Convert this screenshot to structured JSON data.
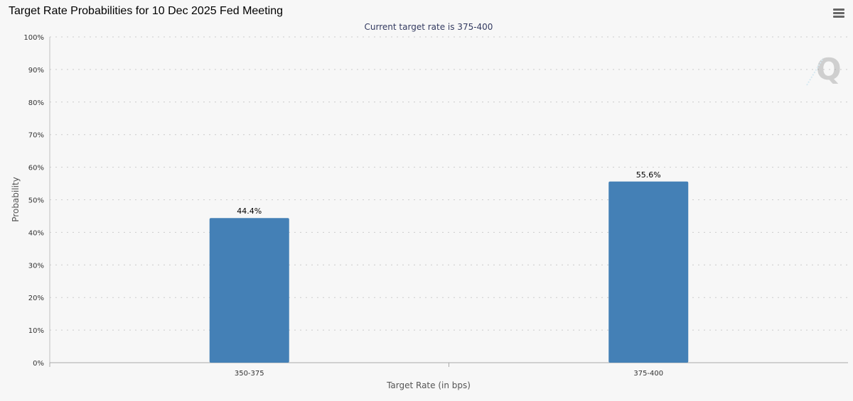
{
  "chart_data": {
    "type": "bar",
    "title": "Target Rate Probabilities for 10 Dec 2025 Fed Meeting",
    "subtitle": "Current target rate is 375-400",
    "xlabel": "Target Rate (in bps)",
    "ylabel": "Probability",
    "categories": [
      "350-375",
      "375-400"
    ],
    "values": [
      44.4,
      55.6
    ],
    "data_labels": [
      "44.4%",
      "55.6%"
    ],
    "ylim": [
      0,
      100
    ],
    "yticks": [
      "0%",
      "10%",
      "20%",
      "30%",
      "40%",
      "50%",
      "60%",
      "70%",
      "80%",
      "90%",
      "100%"
    ],
    "grid": true,
    "bar_color": "#4480b6"
  },
  "menu_icon": "hamburger-menu-icon",
  "watermark_icon": "q-logo-icon"
}
